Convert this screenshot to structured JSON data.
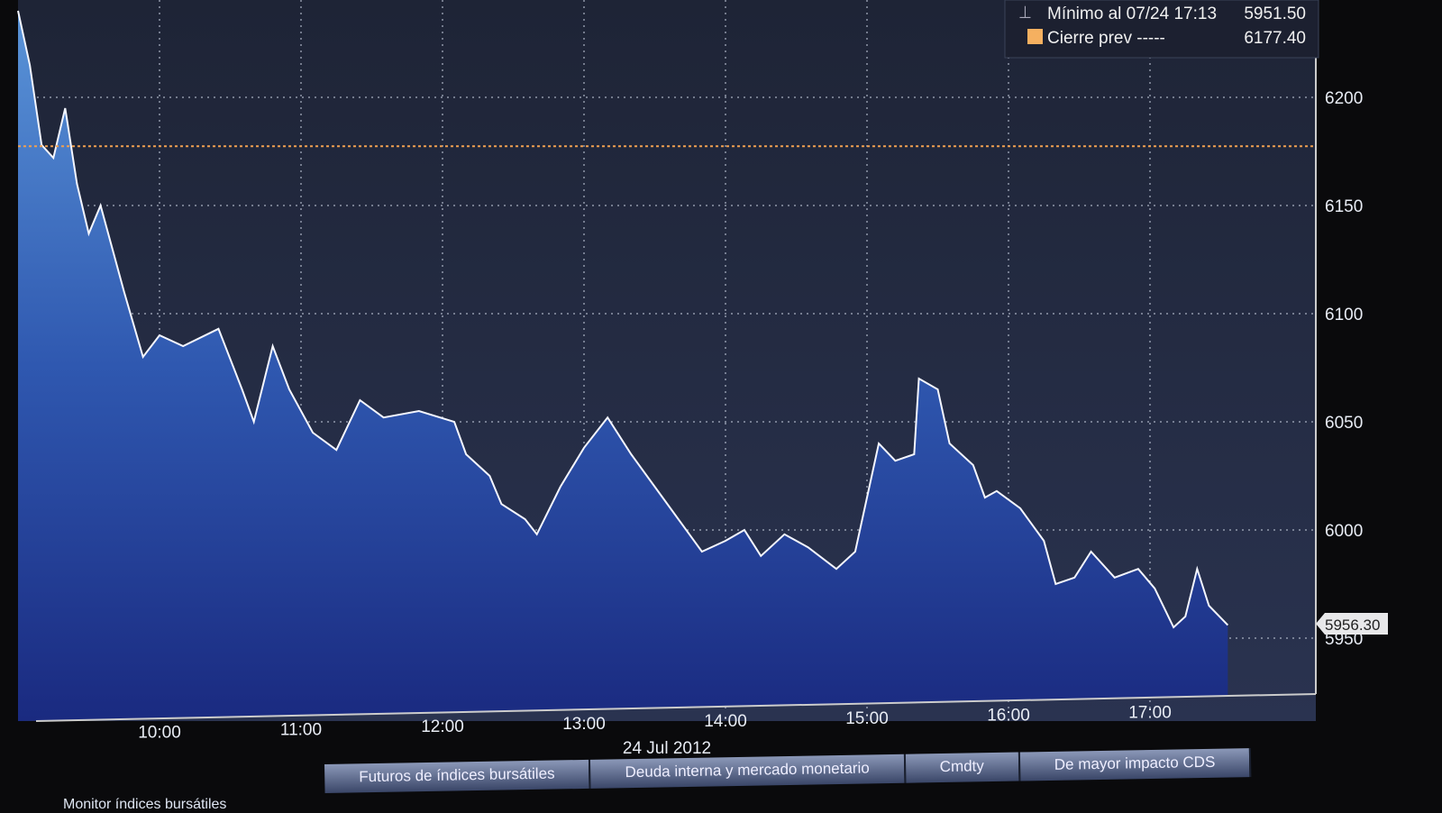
{
  "chart_data": {
    "type": "area",
    "xlabel": "24 Jul 2012",
    "x_ticks": [
      "10:00",
      "11:00",
      "12:00",
      "13:00",
      "14:00",
      "15:00",
      "16:00",
      "17:00"
    ],
    "y_ticks": [
      5950,
      6000,
      6050,
      6100,
      6150,
      6200
    ],
    "ylim": [
      5915,
      6245
    ],
    "xlim": [
      "09:00",
      "17:45"
    ],
    "grid": true,
    "y_axis_side": "right",
    "fill_color": "#3a6fc0",
    "line_color": "#ffffff",
    "x": [
      "09:00",
      "09:05",
      "09:10",
      "09:15",
      "09:20",
      "09:25",
      "09:30",
      "09:35",
      "09:45",
      "09:53",
      "10:00",
      "10:10",
      "10:25",
      "10:35",
      "10:40",
      "10:48",
      "10:55",
      "11:05",
      "11:15",
      "11:25",
      "11:35",
      "11:50",
      "12:05",
      "12:10",
      "12:20",
      "12:25",
      "12:35",
      "12:40",
      "12:50",
      "13:00",
      "13:10",
      "13:20",
      "13:30",
      "13:40",
      "13:50",
      "14:00",
      "14:08",
      "14:15",
      "14:25",
      "14:35",
      "14:47",
      "14:55",
      "15:00",
      "15:05",
      "15:12",
      "15:20",
      "15:22",
      "15:30",
      "15:35",
      "15:45",
      "15:50",
      "15:55",
      "16:05",
      "16:15",
      "16:20",
      "16:28",
      "16:35",
      "16:45",
      "16:55",
      "17:02",
      "17:10",
      "17:15",
      "17:20",
      "17:25",
      "17:33"
    ],
    "y": [
      6240,
      6215,
      6178,
      6172,
      6195,
      6160,
      6137,
      6150,
      6110,
      6080,
      6090,
      6085,
      6093,
      6065,
      6050,
      6085,
      6065,
      6045,
      6037,
      6060,
      6052,
      6055,
      6050,
      6035,
      6025,
      6012,
      6005,
      5998,
      6020,
      6038,
      6052,
      6035,
      6020,
      6005,
      5990,
      5995,
      6000,
      5988,
      5998,
      5992,
      5982,
      5990,
      6015,
      6040,
      6032,
      6035,
      6070,
      6065,
      6040,
      6030,
      6015,
      6018,
      6010,
      5995,
      5975,
      5978,
      5990,
      5978,
      5982,
      5973,
      5955,
      5960,
      5982,
      5965,
      5956
    ],
    "reference_line": {
      "label": "Cierre prev",
      "value": 6177.4,
      "color": "#f0a050"
    },
    "last_price_label": "5956.30",
    "legend": {
      "placement": "top-right",
      "rows": [
        {
          "label": "Mínimo al 07/24 17:13",
          "value": "5951.50"
        },
        {
          "label": "Cierre prev -----",
          "value": "6177.40",
          "swatch": "#f5b060"
        }
      ]
    }
  },
  "footer": {
    "monitor_label": "Monitor índices bursátiles",
    "tabs": [
      "Futuros de índices bursátiles",
      "Deuda interna y mercado monetario",
      "Cmdty",
      "De mayor impacto CDS"
    ]
  }
}
